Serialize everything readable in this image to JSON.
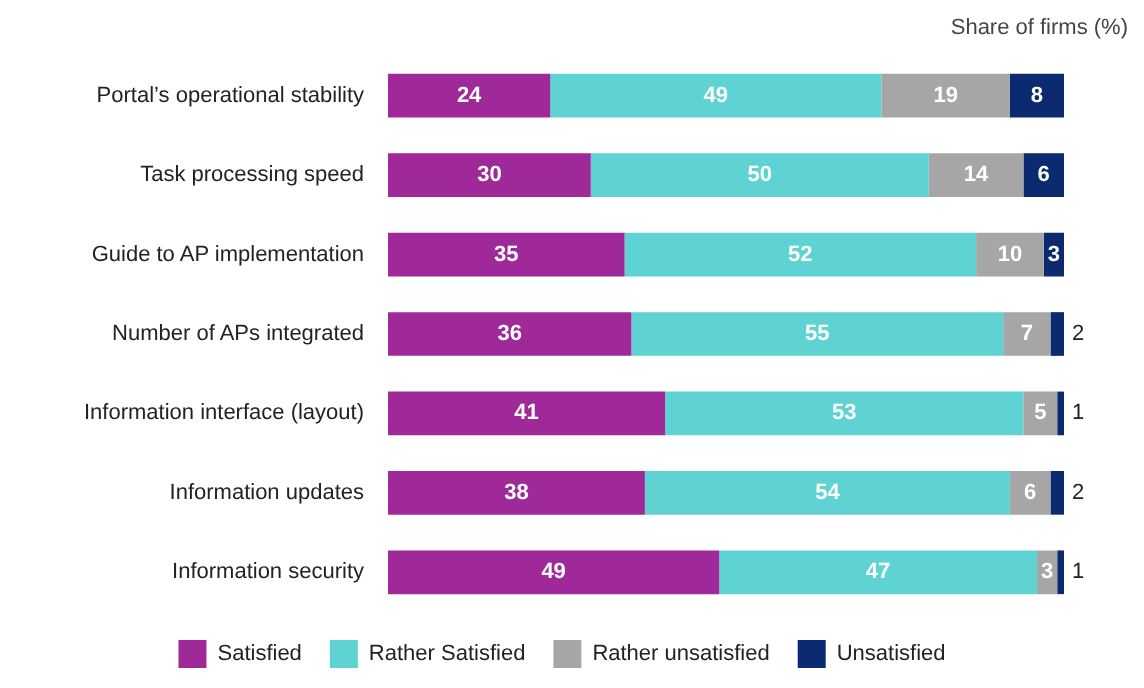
{
  "chart_data": {
    "type": "bar",
    "orientation": "horizontal",
    "stacked": true,
    "subtitle": "Share of firms (%)",
    "categories": [
      "Portal’s operational stability",
      "Task processing speed",
      "Guide to AP implementation",
      "Number of APs integrated",
      "Information interface (layout)",
      "Information updates",
      "Information security"
    ],
    "series": [
      {
        "name": "Satisfied",
        "color": "#a0299a",
        "values": [
          24,
          30,
          35,
          36,
          41,
          38,
          49
        ]
      },
      {
        "name": "Rather Satisfied",
        "color": "#5fd3d3",
        "values": [
          49,
          50,
          52,
          55,
          53,
          54,
          47
        ]
      },
      {
        "name": "Rather unsatisfied",
        "color": "#a6a6a6",
        "values": [
          19,
          14,
          10,
          7,
          5,
          6,
          3
        ]
      },
      {
        "name": "Unsatisfied",
        "color": "#0b2a6f",
        "values": [
          8,
          6,
          3,
          2,
          1,
          2,
          1
        ]
      }
    ],
    "xlim": [
      0,
      100
    ],
    "tick_labels": "y",
    "grid": false,
    "legend": "bottom",
    "data_labels": true
  }
}
